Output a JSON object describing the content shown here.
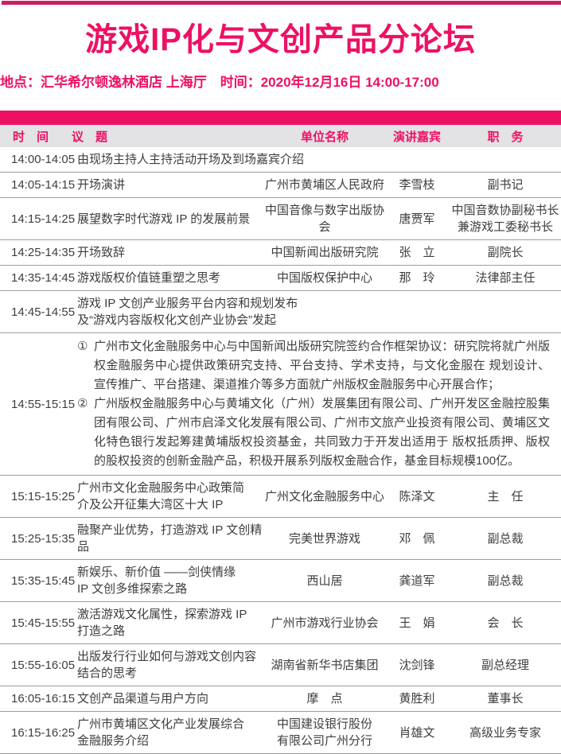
{
  "page": {
    "title": "游戏IP化与文创产品分论坛",
    "meta": "地点：汇华希尔顿逸林酒店 上海厅　时间：2020年12月16日  14:00-17:00"
  },
  "colors": {
    "accent": "#ed1164",
    "top_bar": "#cb2061",
    "header_bg": "#e3e2e4",
    "divider": "#9e9e9e",
    "text": "#3e3e3e"
  },
  "table": {
    "headers": [
      "时　间",
      "议　题",
      "单位名称",
      "演讲嘉宾",
      "职　务"
    ],
    "rows": [
      {
        "type": "span",
        "time": "14:00-14:05",
        "topic": "由现场主持人主持活动开场及到场嘉宾介绍"
      },
      {
        "type": "normal",
        "time": "14:05-14:15",
        "topic": "开场演讲",
        "org": "广州市黄埔区人民政府",
        "speaker": "李雪枝",
        "title": "副书记"
      },
      {
        "type": "normal",
        "time": "14:15-14:25",
        "topic": "展望数字时代游戏 IP 的发展前景",
        "org": "中国音像与数字出版协会",
        "speaker": "唐贾军",
        "title": "中国音数协副秘书长\n兼游戏工委秘书长"
      },
      {
        "type": "normal",
        "time": "14:25-14:35",
        "topic": "开场致辞",
        "org": "中国新闻出版研究院",
        "speaker": "张　立",
        "title": "副院长"
      },
      {
        "type": "normal",
        "time": "14:35-14:45",
        "topic": "游戏版权价值链重塑之思考",
        "org": "中国版权保护中心",
        "speaker": "那　玲",
        "title": "法律部主任"
      },
      {
        "type": "span",
        "time": "14:45-14:55",
        "topic": "游戏 IP 文创产业服务平台内容和规划发布\n及“游戏内容版权化文创产业协会”发起"
      },
      {
        "type": "list",
        "time": "14:55-15:15",
        "items": [
          {
            "marker": "①",
            "text": "广州市文化金融服务中心与中国新闻出版研究院签约合作框架协议：研究院将就广州版权金融服务中心提供政策研究支持、平台支持、学术支持，与文化金服在 规划设计、宣传推广、平台搭建、渠道推介等多方面就广州版权金融服务中心开展合作；"
          },
          {
            "marker": "②",
            "text": "广州版权金融服务中心与黄埔文化（广州）发展集团有限公司、广州开发区金融控股集团有限公司、广州市启泽文化发展有限公司、广州市文旅产业投资有限公司、黄埔区文化特色银行发起筹建黄埔版权投资基金，共同致力于开发出适用于 版权抵质押、版权的股权投资的创新金融产品，积极开展系列版权金融合作，基金目标规模100亿。"
          }
        ]
      },
      {
        "type": "normal",
        "time": "15:15-15:25",
        "topic": "广州市文化金融服务中心政策简\n介及公开征集大湾区十大 IP",
        "org": "广州文化金融服务中心",
        "speaker": "陈泽文",
        "title": "主　任"
      },
      {
        "type": "normal",
        "time": "15:25-15:35",
        "topic": "融聚产业优势，打造游戏 IP 文创精品",
        "org": "完美世界游戏",
        "speaker": "邓　佩",
        "title": "副总裁"
      },
      {
        "type": "normal",
        "time": "15:35-15:45",
        "topic": "新娱乐、新价值 ——剑侠情缘\nIP 文创多维探索之路",
        "org": "西山居",
        "speaker": "龚道军",
        "title": "副总裁"
      },
      {
        "type": "normal",
        "time": "15:45-15:55",
        "topic": "激活游戏文化属性，探索游戏 IP\n打造之路",
        "org": "广州市游戏行业协会",
        "speaker": "王　娟",
        "title": "会　长"
      },
      {
        "type": "normal",
        "time": "15:55-16:05",
        "topic": "出版发行行业如何与游戏文创内容结合的思考",
        "org": "湖南省新华书店集团",
        "speaker": "沈剑锋",
        "title": "副总经理"
      },
      {
        "type": "normal",
        "time": "16:05-16:15",
        "topic": "文创产品渠道与用户方向",
        "org": "摩　点",
        "speaker": "黄胜利",
        "title": "董事长"
      },
      {
        "type": "normal",
        "time": "16:15-16:25",
        "topic": "广州市黄埔区文化产业发展综合\n金融服务介绍",
        "org": "中国建设银行股份\n有限公司广州分行",
        "speaker": "肖雄文",
        "title": "高级业务专家"
      }
    ]
  }
}
